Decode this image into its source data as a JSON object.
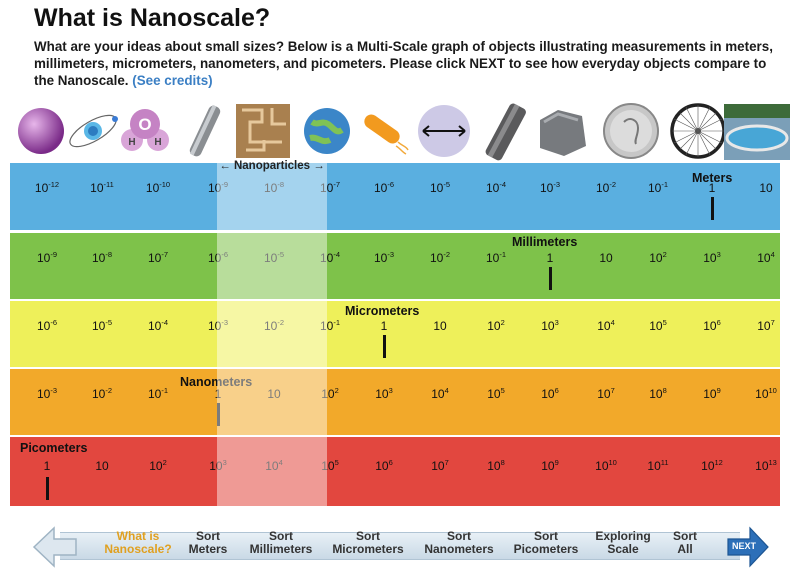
{
  "header": {
    "title": "What is Nanoscale?",
    "intro": "What are your ideas about small sizes? Below is a Multi-Scale graph of objects illustrating measurements in meters, millimeters, micrometers, nanometers, and picometers. Please click NEXT to see how everyday objects compare to the Nanoscale.",
    "credits_link": "(See credits)"
  },
  "objects": [
    "sphere",
    "atom",
    "water-molecule",
    "carbon-nanotube",
    "microchip-circuit",
    "cell",
    "bacterium",
    "red-blood-cell",
    "human-hair",
    "grain-of-sand",
    "dime-coin",
    "bicycle-wheel",
    "swimming-pool"
  ],
  "nanoparticles_label": "Nanoparticles",
  "scales": [
    {
      "name": "Meters",
      "color": "#5aafe0",
      "labels": [
        [
          "10",
          "-12"
        ],
        [
          "10",
          "-11"
        ],
        [
          "10",
          "-10"
        ],
        [
          "10",
          "-9"
        ],
        [
          "10",
          "-8"
        ],
        [
          "10",
          "-7"
        ],
        [
          "10",
          "-6"
        ],
        [
          "10",
          "-5"
        ],
        [
          "10",
          "-4"
        ],
        [
          "10",
          "-3"
        ],
        [
          "10",
          "-2"
        ],
        [
          "10",
          "-1"
        ],
        [
          "1",
          ""
        ],
        [
          "10",
          ""
        ]
      ]
    },
    {
      "name": "Millimeters",
      "color": "#7ec24a",
      "labels": [
        [
          "10",
          "-9"
        ],
        [
          "10",
          "-8"
        ],
        [
          "10",
          "-7"
        ],
        [
          "10",
          "-6"
        ],
        [
          "10",
          "-5"
        ],
        [
          "10",
          "-4"
        ],
        [
          "10",
          "-3"
        ],
        [
          "10",
          "-2"
        ],
        [
          "10",
          "-1"
        ],
        [
          "1",
          ""
        ],
        [
          "10",
          ""
        ],
        [
          "10",
          "2"
        ],
        [
          "10",
          "3"
        ],
        [
          "10",
          "4"
        ]
      ]
    },
    {
      "name": "Micrometers",
      "color": "#eef05a",
      "labels": [
        [
          "10",
          "-6"
        ],
        [
          "10",
          "-5"
        ],
        [
          "10",
          "-4"
        ],
        [
          "10",
          "-3"
        ],
        [
          "10",
          "-2"
        ],
        [
          "10",
          "-1"
        ],
        [
          "1",
          ""
        ],
        [
          "10",
          ""
        ],
        [
          "10",
          "2"
        ],
        [
          "10",
          "3"
        ],
        [
          "10",
          "4"
        ],
        [
          "10",
          "5"
        ],
        [
          "10",
          "6"
        ],
        [
          "10",
          "7"
        ]
      ]
    },
    {
      "name": "Nanometers",
      "color": "#f2a92a",
      "labels": [
        [
          "10",
          "-3"
        ],
        [
          "10",
          "-2"
        ],
        [
          "10",
          "-1"
        ],
        [
          "1",
          ""
        ],
        [
          "10",
          ""
        ],
        [
          "10",
          "2"
        ],
        [
          "10",
          "3"
        ],
        [
          "10",
          "4"
        ],
        [
          "10",
          "5"
        ],
        [
          "10",
          "6"
        ],
        [
          "10",
          "7"
        ],
        [
          "10",
          "8"
        ],
        [
          "10",
          "9"
        ],
        [
          "10",
          "10"
        ]
      ]
    },
    {
      "name": "Picometers",
      "color": "#e2473f",
      "labels": [
        [
          "1",
          ""
        ],
        [
          "10",
          ""
        ],
        [
          "10",
          "2"
        ],
        [
          "10",
          "3"
        ],
        [
          "10",
          "4"
        ],
        [
          "10",
          "5"
        ],
        [
          "10",
          "6"
        ],
        [
          "10",
          "7"
        ],
        [
          "10",
          "8"
        ],
        [
          "10",
          "9"
        ],
        [
          "10",
          "10"
        ],
        [
          "10",
          "11"
        ],
        [
          "10",
          "12"
        ],
        [
          "10",
          "13"
        ]
      ]
    }
  ],
  "nav": {
    "items": [
      {
        "line1": "What is",
        "line2": "Nanoscale?",
        "active": true
      },
      {
        "line1": "Sort",
        "line2": "Meters",
        "active": false
      },
      {
        "line1": "Sort",
        "line2": "Millimeters",
        "active": false
      },
      {
        "line1": "Sort",
        "line2": "Micrometers",
        "active": false
      },
      {
        "line1": "Sort",
        "line2": "Nanometers",
        "active": false
      },
      {
        "line1": "Sort",
        "line2": "Picometers",
        "active": false
      },
      {
        "line1": "Exploring",
        "line2": "Scale",
        "active": false
      },
      {
        "line1": "Sort",
        "line2": "All",
        "active": false
      }
    ],
    "next_label": "NEXT",
    "back_icon": "back-arrow-icon"
  }
}
